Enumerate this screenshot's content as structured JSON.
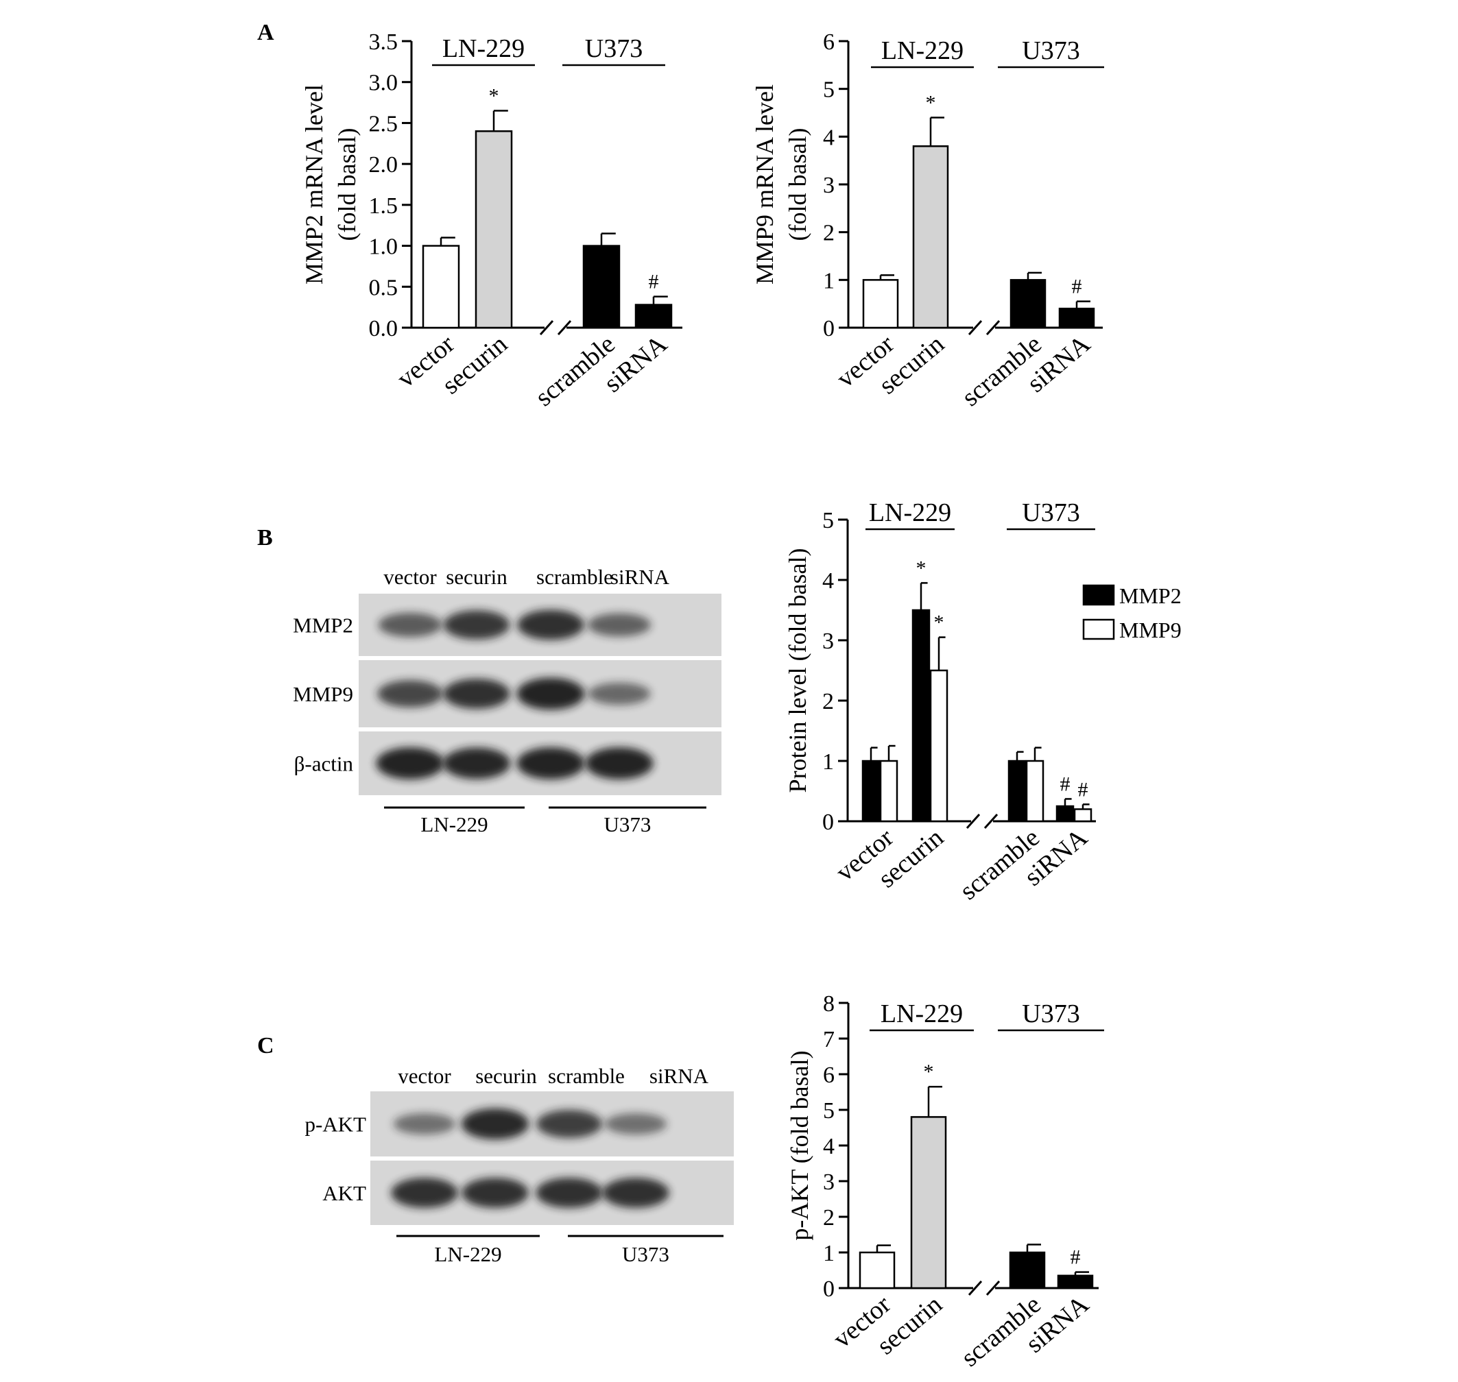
{
  "panels": [
    "A",
    "B",
    "C"
  ],
  "colors": {
    "empty": "#ffffff",
    "gray": "#d3d3d3",
    "black": "#000000",
    "membrane": "#d6d6d6",
    "band": "#1c1c1c"
  },
  "chart_data": [
    {
      "type": "bar",
      "panel": "A",
      "ylabel": [
        "MMP2 mRNA level",
        "(fold basal)"
      ],
      "ylim": [
        0,
        3.5
      ],
      "yticks": [
        "0.0",
        "0.5",
        "1.0",
        "1.5",
        "2.0",
        "2.5",
        "3.0",
        "3.5"
      ],
      "groups": [
        "LN-229",
        "U373"
      ],
      "categories": [
        "vector",
        "securin",
        "scramble",
        "siRNA"
      ],
      "values": [
        1.0,
        2.4,
        1.0,
        0.28
      ],
      "errors": [
        0.1,
        0.25,
        0.15,
        0.1
      ],
      "fills": [
        "empty",
        "gray",
        "black",
        "black"
      ],
      "significance": [
        "",
        "*",
        "",
        "#"
      ],
      "axis_break": true
    },
    {
      "type": "bar",
      "panel": "A",
      "ylabel": [
        "MMP9 mRNA level",
        "(fold basal)"
      ],
      "ylim": [
        0,
        6
      ],
      "yticks": [
        "0",
        "1",
        "2",
        "3",
        "4",
        "5",
        "6"
      ],
      "groups": [
        "LN-229",
        "U373"
      ],
      "categories": [
        "vector",
        "securin",
        "scramble",
        "siRNA"
      ],
      "values": [
        1.0,
        3.8,
        1.0,
        0.4
      ],
      "errors": [
        0.1,
        0.6,
        0.15,
        0.15
      ],
      "fills": [
        "empty",
        "gray",
        "black",
        "black"
      ],
      "significance": [
        "",
        "*",
        "",
        "#"
      ],
      "axis_break": true
    },
    {
      "type": "bar",
      "panel": "B",
      "ylabel": [
        "Protein level (fold basal)"
      ],
      "ylim": [
        0,
        5
      ],
      "yticks": [
        "0",
        "1",
        "2",
        "3",
        "4",
        "5"
      ],
      "groups": [
        "LN-229",
        "U373"
      ],
      "categories": [
        "vector",
        "securin",
        "scramble",
        "siRNA"
      ],
      "series": [
        {
          "name": "MMP2",
          "fill": "black",
          "values": [
            1.0,
            3.5,
            1.0,
            0.25
          ],
          "errors": [
            0.22,
            0.45,
            0.15,
            0.12
          ],
          "significance": [
            "",
            "*",
            "",
            "#"
          ]
        },
        {
          "name": "MMP9",
          "fill": "empty",
          "values": [
            1.0,
            2.5,
            1.0,
            0.2
          ],
          "errors": [
            0.25,
            0.55,
            0.22,
            0.08
          ],
          "significance": [
            "",
            "*",
            "",
            "#"
          ]
        }
      ],
      "legend": "right",
      "axis_break": true
    },
    {
      "type": "bar",
      "panel": "C",
      "ylabel": [
        "p-AKT (fold basal)"
      ],
      "ylim": [
        0,
        8
      ],
      "yticks": [
        "0",
        "1",
        "2",
        "3",
        "4",
        "5",
        "6",
        "7",
        "8"
      ],
      "groups": [
        "LN-229",
        "U373"
      ],
      "categories": [
        "vector",
        "securin",
        "scramble",
        "siRNA"
      ],
      "values": [
        1.0,
        4.8,
        1.0,
        0.35
      ],
      "errors": [
        0.2,
        0.85,
        0.22,
        0.1
      ],
      "fills": [
        "empty",
        "gray",
        "black",
        "black"
      ],
      "significance": [
        "",
        "*",
        "",
        "#"
      ],
      "axis_break": true
    }
  ],
  "blots": [
    {
      "panel": "B",
      "lanes": [
        "vector",
        "securin",
        "scramble",
        "siRNA"
      ],
      "rows": [
        {
          "label": "MMP2",
          "intensity": [
            0.55,
            0.8,
            0.85,
            0.5
          ]
        },
        {
          "label": "MMP9",
          "intensity": [
            0.7,
            0.85,
            0.95,
            0.45
          ]
        },
        {
          "label": "β-actin",
          "intensity": [
            0.95,
            0.92,
            0.95,
            0.95
          ]
        }
      ],
      "groups": [
        "LN-229",
        "U373"
      ]
    },
    {
      "panel": "C",
      "lanes": [
        "vector",
        "securin",
        "scramble",
        "siRNA"
      ],
      "rows": [
        {
          "label": "p-AKT",
          "intensity": [
            0.4,
            0.9,
            0.75,
            0.4
          ]
        },
        {
          "label": "AKT",
          "intensity": [
            0.85,
            0.85,
            0.85,
            0.85
          ]
        }
      ],
      "groups": [
        "LN-229",
        "U373"
      ]
    }
  ]
}
